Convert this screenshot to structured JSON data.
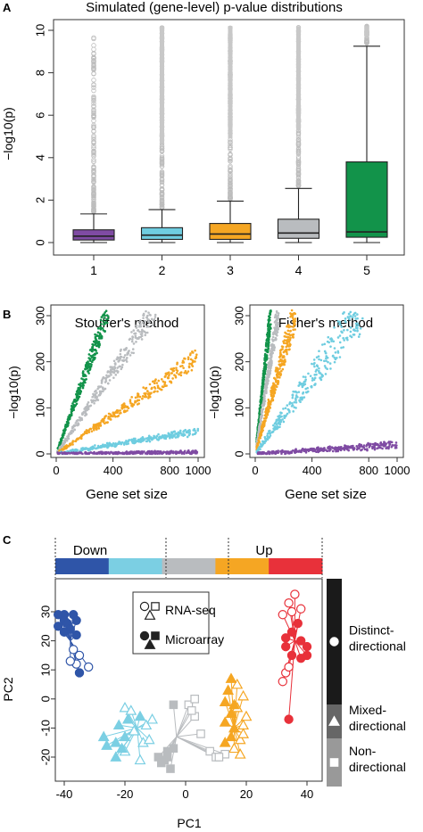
{
  "figure": {
    "panels": [
      "A",
      "B",
      "C"
    ]
  },
  "colors": {
    "purple": "#7f4ba3",
    "cyan": "#6fcde0",
    "orange": "#f5a623",
    "gray": "#b9bcbf",
    "green": "#12934a",
    "blue": "#2f55a8",
    "lightblue": "#7bcfe3",
    "red": "#e8313a",
    "black": "#1a1a1a",
    "darkgray": "#666666",
    "lightgray": "#999999"
  },
  "chart_data": [
    {
      "id": "A",
      "type": "box",
      "title": "Simulated (gene-level) p-value distributions",
      "xlabel": "",
      "ylabel": "−log10(p)",
      "ylim": [
        0,
        10.2
      ],
      "yticks": [
        0,
        2,
        4,
        6,
        8,
        10
      ],
      "categories": [
        "1",
        "2",
        "3",
        "4",
        "5"
      ],
      "colors": [
        "#7f4ba3",
        "#6fcde0",
        "#f5a623",
        "#b9bcbf",
        "#12934a"
      ],
      "boxes": [
        {
          "q1": 0.12,
          "median": 0.3,
          "q3": 0.6,
          "whisker_low": 0.0,
          "whisker_high": 1.35,
          "outliers_from": 1.45,
          "outliers_to": 9.7
        },
        {
          "q1": 0.15,
          "median": 0.35,
          "q3": 0.7,
          "whisker_low": 0.0,
          "whisker_high": 1.55,
          "outliers_from": 1.65,
          "outliers_to": 10.2
        },
        {
          "q1": 0.15,
          "median": 0.4,
          "q3": 0.9,
          "whisker_low": 0.0,
          "whisker_high": 1.95,
          "outliers_from": 2.05,
          "outliers_to": 10.2
        },
        {
          "q1": 0.2,
          "median": 0.45,
          "q3": 1.1,
          "whisker_low": 0.0,
          "whisker_high": 2.55,
          "outliers_from": 2.65,
          "outliers_to": 10.2
        },
        {
          "q1": 0.25,
          "median": 0.5,
          "q3": 3.8,
          "whisker_low": 0.0,
          "whisker_high": 9.25,
          "outliers_from": 9.4,
          "outliers_to": 10.2
        }
      ]
    },
    {
      "id": "B-left",
      "type": "scatter",
      "title": "Stouffer's method",
      "xlabel": "Gene set size",
      "ylabel": "−log10(p)",
      "xlim": [
        0,
        1000
      ],
      "ylim": [
        0,
        310
      ],
      "xticks": [
        0,
        400,
        800,
        1000
      ],
      "yticks": [
        0,
        100,
        200,
        300
      ],
      "series": [
        {
          "color": "#12934a",
          "slope": 0.85,
          "x_max": 370,
          "spread": 0.1
        },
        {
          "color": "#b9bcbf",
          "slope": 0.45,
          "x_max": 700,
          "spread": 0.1
        },
        {
          "color": "#f5a623",
          "slope": 0.21,
          "x_max": 1000,
          "spread": 0.1
        },
        {
          "color": "#6fcde0",
          "slope": 0.05,
          "x_max": 1000,
          "spread": 0.15
        },
        {
          "color": "#7f4ba3",
          "slope": 0.004,
          "x_max": 1000,
          "spread": 0.3
        }
      ]
    },
    {
      "id": "B-right",
      "type": "scatter",
      "title": "Fisher's method",
      "xlabel": "Gene set size",
      "ylabel": "−log10(p)",
      "xlim": [
        0,
        1000
      ],
      "ylim": [
        0,
        310
      ],
      "xticks": [
        0,
        400,
        800,
        1000
      ],
      "yticks": [
        0,
        100,
        200,
        300
      ],
      "series": [
        {
          "color": "#12934a",
          "slope": 2.8,
          "x_max": 110,
          "spread": 0.12
        },
        {
          "color": "#b9bcbf",
          "slope": 1.9,
          "x_max": 165,
          "spread": 0.12
        },
        {
          "color": "#f5a623",
          "slope": 1.1,
          "x_max": 285,
          "spread": 0.14
        },
        {
          "color": "#6fcde0",
          "slope": 0.42,
          "x_max": 760,
          "spread": 0.18
        },
        {
          "color": "#7f4ba3",
          "slope": 0.02,
          "x_max": 1000,
          "spread": 0.35
        }
      ]
    },
    {
      "id": "C",
      "type": "scatter",
      "title": "",
      "xlabel": "PC1",
      "ylabel": "PC2",
      "xlim": [
        -46,
        46
      ],
      "ylim": [
        -27,
        40
      ],
      "xticks": [
        -40,
        -20,
        0,
        20,
        40
      ],
      "yticks": [
        -20,
        -10,
        0,
        10,
        20,
        30
      ],
      "direction_bar": {
        "left_label": "Down",
        "right_label": "Up",
        "segments": [
          "#2f55a8",
          "#7bcfe3",
          "#b9bcbf",
          "#f5a623",
          "#e8313a"
        ]
      },
      "legend": {
        "items": [
          "RNA-seq",
          "Microarray"
        ]
      },
      "side_bar": [
        {
          "label": "Distinct-\ndirectional",
          "color": "#1a1a1a",
          "marker": "circle"
        },
        {
          "label": "Mixed-\ndirectional",
          "color": "#666666",
          "marker": "triangle"
        },
        {
          "label": "Non-\ndirectional",
          "color": "#999999",
          "marker": "square"
        }
      ],
      "groups": [
        {
          "color": "#2f55a8",
          "marker": "circle",
          "center": [
            -38,
            20
          ],
          "filled": [
            [
              -40,
              29
            ],
            [
              -37,
              29
            ],
            [
              -36,
              27
            ],
            [
              -40,
              27
            ],
            [
              -42,
              25
            ],
            [
              -39,
              26
            ],
            [
              -38,
              24
            ],
            [
              -40,
              23
            ],
            [
              -36,
              22
            ],
            [
              -42,
              29
            ],
            [
              -35,
              9
            ]
          ],
          "open": [
            [
              -37,
              17
            ],
            [
              -32,
              11
            ],
            [
              -36,
              12
            ],
            [
              -38,
              13
            ],
            [
              -35,
              15
            ]
          ]
        },
        {
          "color": "#e8313a",
          "marker": "circle",
          "center": [
            36,
            20
          ],
          "filled": [
            [
              33,
              21
            ],
            [
              35,
              23
            ],
            [
              38,
              20
            ],
            [
              40,
              18
            ],
            [
              40,
              15
            ],
            [
              38,
              14
            ],
            [
              35,
              15
            ],
            [
              33,
              18
            ],
            [
              37,
              26
            ],
            [
              34,
              -7
            ]
          ],
          "open": [
            [
              36,
              36
            ],
            [
              34,
              33
            ],
            [
              32,
              29
            ],
            [
              35,
              30
            ],
            [
              38,
              31
            ],
            [
              33,
              9
            ],
            [
              32,
              6
            ],
            [
              34,
              11
            ]
          ]
        },
        {
          "color": "#f5a623",
          "marker": "triangle",
          "center": [
            16,
            -10
          ],
          "filled": [
            [
              13,
              -1
            ],
            [
              14,
              3
            ],
            [
              15,
              -5
            ],
            [
              13,
              -8
            ],
            [
              16,
              -10
            ],
            [
              15,
              -13
            ],
            [
              13,
              -15
            ],
            [
              15,
              7
            ],
            [
              16,
              -2
            ]
          ],
          "open": [
            [
              17,
              5
            ],
            [
              19,
              1
            ],
            [
              17,
              -3
            ],
            [
              20,
              -6
            ],
            [
              19,
              -9
            ],
            [
              18,
              -14
            ],
            [
              16,
              -17
            ],
            [
              18,
              -19
            ],
            [
              19,
              -12
            ]
          ]
        },
        {
          "color": "#7bcfe3",
          "marker": "triangle",
          "center": [
            -16,
            -10
          ],
          "filled": [
            [
              -21,
              -17
            ],
            [
              -20,
              -13
            ],
            [
              -23,
              -15
            ],
            [
              -22,
              -9
            ],
            [
              -19,
              -7
            ],
            [
              -15,
              -6
            ],
            [
              -27,
              -13
            ],
            [
              -23,
              -20
            ],
            [
              -26,
              -16
            ]
          ],
          "open": [
            [
              -20,
              -3
            ],
            [
              -18,
              -4
            ],
            [
              -17,
              -11
            ],
            [
              -13,
              -9
            ],
            [
              -14,
              -15
            ],
            [
              -15,
              -21
            ],
            [
              -11,
              -7
            ],
            [
              -20,
              -18
            ],
            [
              -12,
              -14
            ]
          ]
        },
        {
          "color": "#b9bcbf",
          "marker": "square",
          "center": [
            -3,
            -13
          ],
          "filled": [
            [
              -4,
              -17
            ],
            [
              -6,
              -20
            ],
            [
              -7,
              -21
            ],
            [
              -5,
              -24
            ],
            [
              -9,
              -20
            ],
            [
              -4,
              -2
            ],
            [
              -6,
              -18
            ],
            [
              -8,
              -22
            ]
          ],
          "open": [
            [
              3,
              -6
            ],
            [
              1,
              -2
            ],
            [
              5,
              -12
            ],
            [
              8,
              -18
            ],
            [
              10,
              -20
            ],
            [
              13,
              -19
            ],
            [
              3,
              0
            ],
            [
              2,
              -4
            ],
            [
              11,
              -20
            ]
          ]
        }
      ]
    }
  ]
}
